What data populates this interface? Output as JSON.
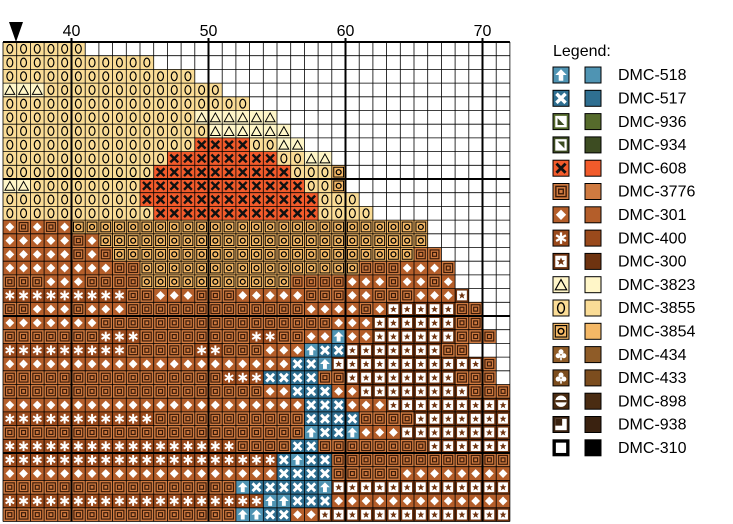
{
  "chart_data": {
    "type": "pattern",
    "xlim": [
      35,
      72
    ],
    "xticks": [
      40,
      50,
      60,
      70
    ],
    "legend_title": "Legend:",
    "legend": [
      {
        "name": "DMC-518",
        "color": "#4f94b3"
      },
      {
        "name": "DMC-517",
        "color": "#2f6f91"
      },
      {
        "name": "DMC-936",
        "color": "#566b2c"
      },
      {
        "name": "DMC-934",
        "color": "#3d4c22"
      },
      {
        "name": "DMC-608",
        "color": "#f25b2b"
      },
      {
        "name": "DMC-3776",
        "color": "#cf7a40"
      },
      {
        "name": "DMC-301",
        "color": "#b45e2a"
      },
      {
        "name": "DMC-400",
        "color": "#9a4a1c"
      },
      {
        "name": "DMC-300",
        "color": "#6e3310"
      },
      {
        "name": "DMC-3823",
        "color": "#fff6c8"
      },
      {
        "name": "DMC-3855",
        "color": "#fadc96"
      },
      {
        "name": "DMC-3854",
        "color": "#f4b866"
      },
      {
        "name": "DMC-434",
        "color": "#8f5c28"
      },
      {
        "name": "DMC-433",
        "color": "#7c4d1e"
      },
      {
        "name": "DMC-898",
        "color": "#4a2c12"
      },
      {
        "name": "DMC-938",
        "color": "#3a2210"
      },
      {
        "name": "DMC-310",
        "color": "#000000"
      }
    ],
    "rows": [
      "aaaaaa",
      "aaaaaaaaaaa",
      "aaaaaaaaaaaaaa",
      "999aaaaaaaaaaaaa",
      "aaaaaaaaaaaaaaaaaa",
      "aaaaaaaaaaaaaa999999",
      "aaaaaaaaaaaaaaa999999",
      "aaaaaaaaaaaaaa4444aa99",
      "aaaaaaaaaaaa44444444aa99",
      "aaaaaaaaaaa4444444444aaab",
      "99aaaaaaaa444444444444aab",
      "aaaaaaaaaa4444444444444aaa",
      "aaaaaaaaaaa444444444444aaaa",
      "65656bbbbbbbbbbbbbbbbbbbbbbbbbb",
      "6666656bbbbbbbbbbbbbbbbbbbbbbbb",
      "66666565bbbbbbbbbbbbbbbbbbbbbb55",
      "6666666655bbbbbbbbbbbbbbbb5556665",
      "5556665555bbbbbbbbbbb555566656656",
      "7777777775566655566666555665556668",
      "55666566655555555555556666568888855",
      "66666665555555555555555566688888855",
      "555555577755555555775566066888888555",
      "7777777775555577555666011888888855",
      "666666666666666666666110888888888885",
      "555555555555555577711115588888888555",
      "5555555555555555555661116688888888555",
      "6666666666666666666666111666888888888",
      "7777777777755555555555111155558888888",
      "5555555555555555555555011066688888888",
      "7777777777777777755551155555555888888",
      "7777777777777777777710115555555555555",
      "6666666666666666666611115555566666666",
      "5555555555555555501111108888888888888",
      "7777777777777777777001116666666666666",
      "5555555555555555500116688888888888888"
    ]
  }
}
